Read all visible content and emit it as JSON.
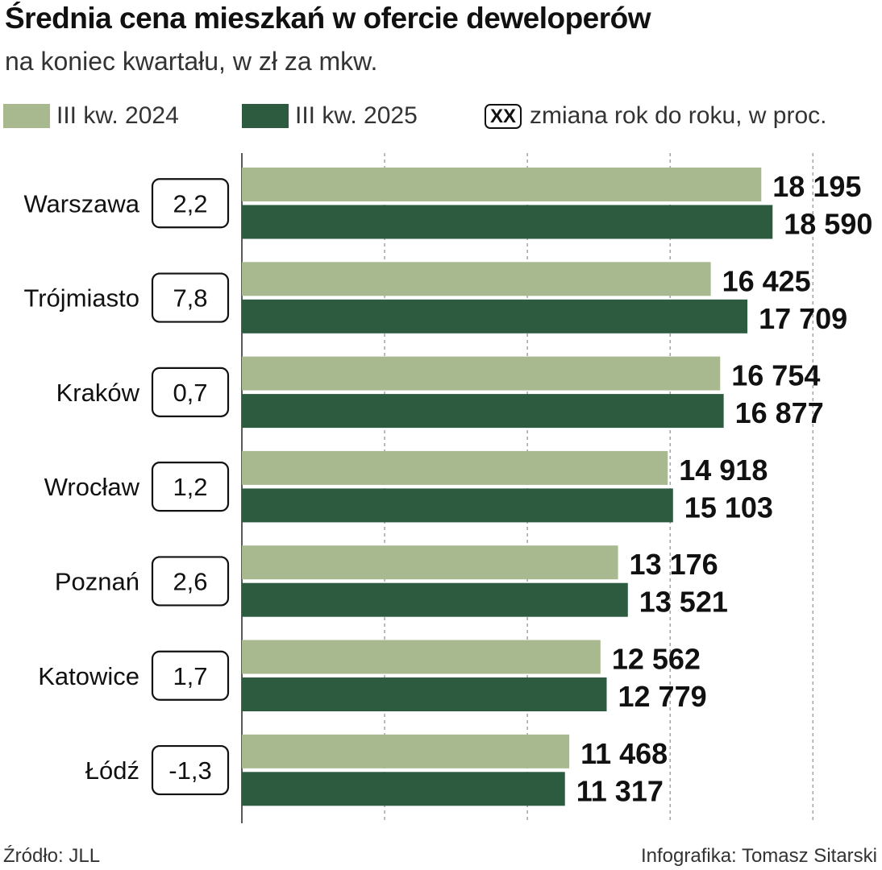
{
  "title": "Średnia cena mieszkań w ofercie deweloperów",
  "subtitle": "na koniec kwartału, w zł za mkw.",
  "legend": {
    "series_2024": "III kw. 2024",
    "series_2025": "III kw. 2025",
    "change_box": "XX",
    "change_label": "zmiana rok do roku, w proc."
  },
  "colors": {
    "series_2024": "#a9b98f",
    "series_2025": "#2c5b3f",
    "grid": "#777777"
  },
  "source": "Źródło: JLL",
  "credit": "Infografika: Tomasz Sitarski",
  "chart_data": {
    "type": "bar",
    "orientation": "horizontal",
    "categories": [
      "Warszawa",
      "Trójmiasto",
      "Kraków",
      "Wrocław",
      "Poznań",
      "Katowice",
      "Łódź"
    ],
    "series": [
      {
        "name": "III kw. 2024",
        "values": [
          18195,
          16425,
          16754,
          14918,
          13176,
          12562,
          11468
        ]
      },
      {
        "name": "III kw. 2025",
        "values": [
          18590,
          17709,
          16877,
          15103,
          13521,
          12779,
          11317
        ]
      }
    ],
    "value_labels_2024": [
      "18 195",
      "16 425",
      "16 754",
      "14 918",
      "13 176",
      "12 562",
      "11 468"
    ],
    "value_labels_2025": [
      "18 590",
      "17 709",
      "16 877",
      "15 103",
      "13 521",
      "12 779",
      "11 317"
    ],
    "yoy_change_pct": [
      "2,2",
      "7,8",
      "0,7",
      "1,2",
      "2,6",
      "1,7",
      "-1,3"
    ],
    "xlim": [
      0,
      20000
    ],
    "grid": true
  }
}
